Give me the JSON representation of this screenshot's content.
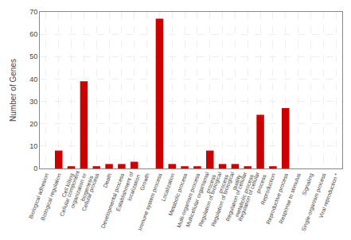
{
  "chart_data": {
    "type": "bar",
    "ylabel": "Number of Genes",
    "categories": [
      "Biological adhesion",
      "Biological regulation",
      "Cell killing",
      "Cellular component\norganization or\nbiogenesis",
      "Cellular process",
      "Death",
      "Developmental process",
      "Establishment of\nlocalization",
      "Growth",
      "Immune system process",
      "Localization",
      "Metabolic process",
      "Multi-organism process",
      "Multicellular organismal\nprocess",
      "Regulation of biological\nprocess",
      "Regulation of biological\nquality",
      "Regulation of cellular\nmetabolic process",
      "Regulation of cellular\nprocess",
      "Reproduction",
      "Reproductive process",
      "Response to stimulus",
      "Signaling",
      "Single-organism process",
      "Viral reproduction *"
    ],
    "values": [
      0,
      8,
      1,
      39,
      1,
      2,
      2,
      3,
      0,
      67,
      2,
      1,
      1,
      8,
      2,
      2,
      1,
      24,
      1,
      27,
      0,
      0,
      0,
      0
    ],
    "color": "#cc0000",
    "ylim": [
      0,
      70
    ],
    "yticks": [
      0,
      10,
      20,
      30,
      40,
      50,
      60,
      70
    ],
    "grid": true
  }
}
